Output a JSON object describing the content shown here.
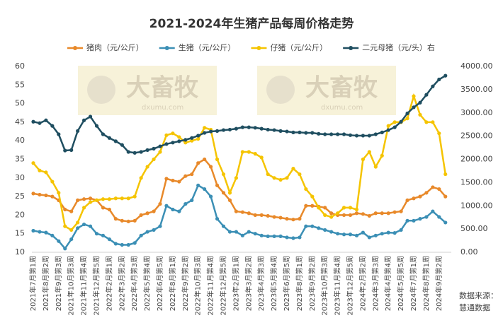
{
  "chart_data": {
    "type": "line",
    "title": "2021-2024年生猪产品每周价格走势",
    "categories": [
      "2021年7月第1周",
      null,
      "2021年8月第2周",
      null,
      "2021年9月第3周",
      null,
      "2021年10月第3周",
      null,
      "2021年11月第4周",
      null,
      "2021年12月第5周",
      null,
      "2022年2月第1周",
      null,
      "2022年3月第2周",
      null,
      "2022年4月第3周",
      null,
      "2022年5月第4周",
      null,
      "2022年6月第5周",
      null,
      "2022年8月第1周",
      null,
      "2022年9月第2周",
      null,
      "2022年10月第3周",
      null,
      "2022年11月第4周",
      null,
      "2022年12月第5周",
      null,
      "2023年2月第1周",
      null,
      "2023年3月第2周",
      null,
      "2023年4月第3周",
      null,
      "2023年5月第4周",
      null,
      "2023年6月第5周",
      null,
      "2023年8月第1周",
      null,
      "2023年9月第2周",
      null,
      "2023年10月第3周",
      null,
      "2023年11月第4周",
      null,
      "2023年12月第5周",
      null,
      "2024年2月第2周",
      null,
      "2024年3月第3周",
      null,
      "2024年4月第4周",
      null,
      "2024年5月第5周",
      null,
      "2024年7月第1周",
      null,
      "2024年8月第1周",
      null,
      "2024年9月第2周",
      null
    ],
    "series": [
      {
        "name": "猪肉（元/公斤）",
        "color": "#e8892a",
        "values": [
          25.8,
          25.5,
          25.3,
          25,
          24,
          21.5,
          21,
          24,
          24.3,
          24.5,
          24,
          22,
          21.5,
          19,
          18.5,
          18.3,
          18.5,
          20,
          20.5,
          21,
          23,
          29.8,
          29.3,
          29,
          30.5,
          31,
          34,
          35,
          33,
          28,
          26,
          24,
          21,
          20.8,
          20.5,
          20,
          20,
          19.8,
          19.5,
          19.3,
          19,
          18.8,
          19,
          22.5,
          22.5,
          22.3,
          22,
          20.5,
          20,
          20,
          20,
          20.5,
          20.3,
          19.8,
          20.5,
          20.5,
          20.5,
          20.8,
          21,
          24,
          24.5,
          25,
          26,
          27.5,
          27,
          25
        ]
      },
      {
        "name": "生猪（元/公斤）",
        "color": "#3b8fb5",
        "values": [
          15.8,
          15.5,
          15.3,
          14.5,
          13,
          11,
          13.5,
          16.5,
          17.5,
          17,
          15,
          14.5,
          13.5,
          12.3,
          12,
          12,
          12.5,
          14.5,
          15.5,
          16,
          17,
          22.5,
          21.5,
          21,
          23,
          24,
          28,
          27,
          25,
          19,
          17,
          15.5,
          15.5,
          14.5,
          15.5,
          15,
          14.5,
          14.3,
          14.3,
          14.3,
          14,
          13.8,
          14,
          17,
          17,
          16.5,
          16,
          15.5,
          15,
          14.8,
          14.8,
          14.5,
          15.3,
          14,
          14.5,
          15,
          15.3,
          15.2,
          16,
          18.5,
          18.5,
          19,
          19.5,
          21,
          19.5,
          18
        ]
      },
      {
        "name": "仔猪（元/公斤）",
        "color": "#f5c400",
        "values": [
          34,
          32,
          31.5,
          29,
          26,
          17,
          16,
          18,
          22,
          23.5,
          24,
          24.3,
          24.3,
          24.5,
          24.5,
          24.5,
          25,
          30,
          33,
          35,
          37,
          41.5,
          42,
          41,
          39.5,
          40,
          40.5,
          43.5,
          43,
          35,
          31,
          26,
          30,
          37,
          37,
          36.5,
          35.5,
          31,
          30,
          29.5,
          30,
          32.5,
          31,
          27,
          25,
          22,
          20,
          19.5,
          20.5,
          22,
          22,
          21.5,
          35,
          37,
          33,
          36,
          44,
          45,
          45,
          46,
          52,
          47,
          45,
          45,
          42,
          31
        ]
      },
      {
        "name": "二元母猪（元/头）右",
        "color": "#1f4e60",
        "axis": "y2",
        "values": [
          2810,
          2780,
          2840,
          2720,
          2540,
          2190,
          2200,
          2610,
          2840,
          2920,
          2720,
          2540,
          2460,
          2390,
          2310,
          2160,
          2140,
          2160,
          2200,
          2230,
          2280,
          2330,
          2360,
          2390,
          2420,
          2460,
          2510,
          2570,
          2600,
          2610,
          2630,
          2640,
          2660,
          2690,
          2690,
          2680,
          2660,
          2640,
          2630,
          2610,
          2600,
          2580,
          2580,
          2570,
          2570,
          2550,
          2540,
          2540,
          2540,
          2540,
          2520,
          2510,
          2510,
          2510,
          2540,
          2580,
          2630,
          2690,
          2810,
          2990,
          3120,
          3220,
          3390,
          3570,
          3720,
          3800
        ]
      }
    ],
    "ylim": [
      10,
      60
    ],
    "yticks": [
      10,
      15,
      20,
      25,
      30,
      35,
      40,
      45,
      50,
      55,
      60
    ],
    "y2lim": [
      0,
      4000
    ],
    "y2ticks": [
      {
        "value": 0,
        "label": "0.00"
      },
      {
        "value": 500,
        "label": "500.00"
      },
      {
        "value": 1000,
        "label": "1000.00"
      },
      {
        "value": 1500,
        "label": "1500.00"
      },
      {
        "value": 2000,
        "label": "2000.00"
      },
      {
        "value": 2500,
        "label": "2500.00"
      },
      {
        "value": 3000,
        "label": "3000.00"
      },
      {
        "value": 3500,
        "label": "3500.00"
      },
      {
        "value": 4000,
        "label": "4000.00"
      }
    ],
    "grid": false,
    "legend": "top",
    "watermark": {
      "brand": "大畜牧",
      "site": "dxumu.com"
    },
    "source": [
      "数据来源：",
      "慧通数据"
    ]
  }
}
